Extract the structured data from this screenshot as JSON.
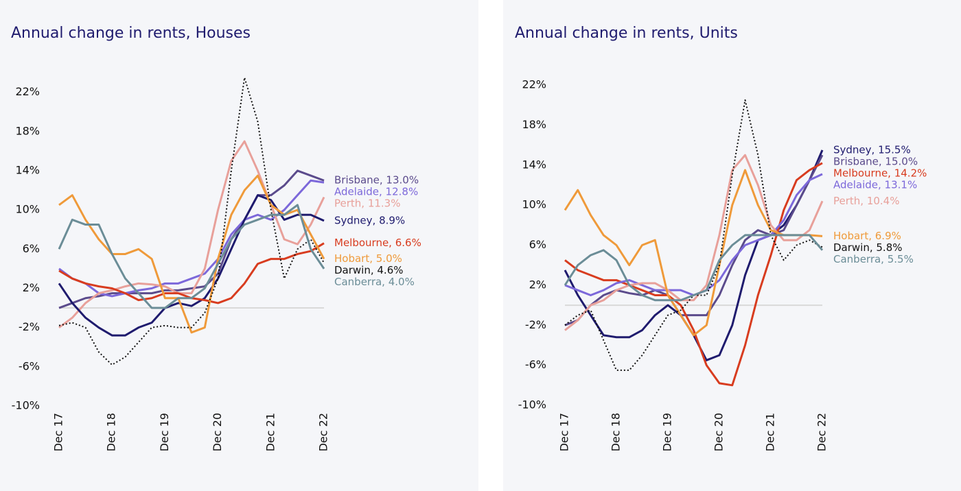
{
  "chart_data": [
    {
      "type": "line",
      "title": "Annual change in rents, Houses",
      "categories": [
        "Dec 17",
        null,
        null,
        null,
        "Dec 18",
        null,
        null,
        null,
        "Dec 19",
        null,
        null,
        null,
        "Dec 20",
        null,
        null,
        null,
        "Dec 21",
        null,
        null,
        null,
        "Dec 22"
      ],
      "ylim": [
        -10,
        24
      ],
      "yticks": [
        {
          "value": 22,
          "label": "22%"
        },
        {
          "value": 18,
          "label": "18%"
        },
        {
          "value": 14,
          "label": "14%"
        },
        {
          "value": 10,
          "label": "10%"
        },
        {
          "value": 6,
          "label": "6%"
        },
        {
          "value": 2,
          "label": "2%"
        },
        {
          "value": -2,
          "label": "-2%"
        },
        {
          "value": -6,
          "label": "-6%"
        },
        {
          "value": -10,
          "label": "-10%"
        }
      ],
      "series": [
        {
          "name": "Brisbane",
          "label": "Brisbane, 13.0%",
          "color": "#5b4b8c",
          "values": [
            0,
            0.5,
            1.0,
            1.2,
            1.5,
            1.5,
            1.5,
            1.5,
            1.8,
            1.8,
            2.0,
            2.2,
            3.5,
            7.0,
            9.0,
            11.5,
            11.5,
            12.5,
            14.0,
            13.5,
            13.0
          ]
        },
        {
          "name": "Adelaide",
          "label": "Adelaide, 12.8%",
          "color": "#7c68da",
          "values": [
            4.0,
            3.0,
            2.5,
            1.5,
            1.2,
            1.5,
            1.8,
            2.0,
            2.5,
            2.5,
            3.0,
            3.5,
            5.0,
            7.5,
            9.0,
            9.5,
            9.0,
            10.0,
            11.5,
            13.0,
            12.8
          ]
        },
        {
          "name": "Perth",
          "label": "Perth, 11.3%",
          "color": "#e8a09a",
          "values": [
            -2.0,
            -1.0,
            0.5,
            1.5,
            1.8,
            2.2,
            2.5,
            2.4,
            2.2,
            1.5,
            1.5,
            4.0,
            10.0,
            15.0,
            17.0,
            14.0,
            10.5,
            7.0,
            6.5,
            8.5,
            11.3
          ]
        },
        {
          "name": "Sydney",
          "label": "Sydney, 8.9%",
          "color": "#1f1b6e",
          "values": [
            2.5,
            0.5,
            -1.0,
            -2.0,
            -2.8,
            -2.8,
            -2.0,
            -1.5,
            0,
            0.5,
            0.2,
            1.0,
            3.0,
            6.0,
            9.0,
            11.5,
            11.0,
            9.0,
            9.5,
            9.5,
            8.9
          ]
        },
        {
          "name": "Melbourne",
          "label": "Melbourne, 6.6%",
          "color": "#d83c1f",
          "values": [
            3.8,
            3.0,
            2.5,
            2.2,
            2.0,
            1.5,
            0.8,
            1.0,
            1.5,
            1.5,
            1.0,
            0.8,
            0.5,
            1.0,
            2.5,
            4.5,
            5.0,
            5.0,
            5.5,
            5.8,
            6.6
          ]
        },
        {
          "name": "Hobart",
          "label": "Hobart, 5.0%",
          "color": "#ef9a3a",
          "values": [
            10.5,
            11.5,
            9.0,
            7.0,
            5.5,
            5.5,
            6.0,
            5.0,
            1.0,
            1.0,
            -2.5,
            -2.0,
            5.0,
            9.5,
            12.0,
            13.5,
            10.5,
            9.5,
            10.0,
            7.5,
            5.0
          ]
        },
        {
          "name": "Darwin",
          "label": "Darwin, 4.6%",
          "color": "#111111",
          "dash": true,
          "values": [
            -1.8,
            -1.5,
            -2.0,
            -4.5,
            -5.8,
            -5.0,
            -3.5,
            -2.0,
            -1.8,
            -2.0,
            -2.0,
            -0.5,
            3.0,
            14.0,
            23.5,
            19.0,
            10.0,
            3.0,
            6.0,
            7.0,
            4.6
          ]
        },
        {
          "name": "Canberra",
          "label": "Canberra, 4.0%",
          "color": "#6b8d97",
          "values": [
            6.0,
            9.0,
            8.5,
            8.5,
            5.5,
            3.0,
            1.5,
            0,
            0,
            1.0,
            1.0,
            2.0,
            4.5,
            7.0,
            8.5,
            9.0,
            9.5,
            9.5,
            10.5,
            6.0,
            4.0
          ]
        }
      ]
    },
    {
      "type": "line",
      "title": "Annual change in rents, Units",
      "categories": [
        "Dec 17",
        null,
        null,
        null,
        "Dec 18",
        null,
        null,
        null,
        "Dec 19",
        null,
        null,
        null,
        "Dec 20",
        null,
        null,
        null,
        "Dec 21",
        null,
        null,
        null,
        "Dec 22"
      ],
      "ylim": [
        -10,
        22
      ],
      "yticks": [
        {
          "value": 22,
          "label": "22%"
        },
        {
          "value": 18,
          "label": "18%"
        },
        {
          "value": 14,
          "label": "14%"
        },
        {
          "value": 10,
          "label": "10%"
        },
        {
          "value": 6,
          "label": "6%"
        },
        {
          "value": 2,
          "label": "2%"
        },
        {
          "value": -2,
          "label": "-2%"
        },
        {
          "value": -6,
          "label": "-6%"
        },
        {
          "value": -10,
          "label": "-10%"
        }
      ],
      "series": [
        {
          "name": "Sydney",
          "label": "Sydney, 15.5%",
          "color": "#1f1b6e",
          "values": [
            3.5,
            1.0,
            -1.0,
            -3.0,
            -3.2,
            -3.2,
            -2.5,
            -1.0,
            0,
            -1.0,
            -3.0,
            -5.5,
            -5.0,
            -2.0,
            3.0,
            6.5,
            7.0,
            8.0,
            10.0,
            12.5,
            15.5
          ]
        },
        {
          "name": "Brisbane",
          "label": "Brisbane, 15.0%",
          "color": "#5b4b8c",
          "values": [
            -2.0,
            -1.5,
            0,
            1.0,
            1.5,
            1.2,
            1.0,
            1.5,
            1.0,
            -1.0,
            -1.0,
            -1.0,
            1.0,
            4.0,
            6.5,
            7.5,
            7.0,
            7.5,
            10.0,
            12.5,
            15.0
          ]
        },
        {
          "name": "Melbourne",
          "label": "Melbourne, 14.2%",
          "color": "#d83c1f",
          "values": [
            4.5,
            3.5,
            3.0,
            2.5,
            2.5,
            2.0,
            1.5,
            1.0,
            1.0,
            0,
            -2.5,
            -6.0,
            -7.8,
            -8.0,
            -4.0,
            1.0,
            5.0,
            9.5,
            12.5,
            13.5,
            14.2
          ]
        },
        {
          "name": "Adelaide",
          "label": "Adelaide, 13.1%",
          "color": "#7c68da",
          "values": [
            2.0,
            1.5,
            1.0,
            1.5,
            2.2,
            2.5,
            2.0,
            1.5,
            1.5,
            1.5,
            1.0,
            1.5,
            2.5,
            4.5,
            6.0,
            6.5,
            7.0,
            8.5,
            11.0,
            12.5,
            13.1
          ]
        },
        {
          "name": "Perth",
          "label": "Perth, 10.4%",
          "color": "#e8a09a",
          "values": [
            -2.5,
            -1.5,
            0,
            0.5,
            1.5,
            2.0,
            2.2,
            2.2,
            1.5,
            0.5,
            0.5,
            2.0,
            7.0,
            13.5,
            15.0,
            12.0,
            8.0,
            6.5,
            6.5,
            7.5,
            10.4
          ]
        },
        {
          "name": "Hobart",
          "label": "Hobart, 6.9%",
          "color": "#ef9a3a",
          "values": [
            9.5,
            11.5,
            9.0,
            7.0,
            6.0,
            4.0,
            6.0,
            6.5,
            1.0,
            -1.0,
            -3.0,
            -2.0,
            4.0,
            10.0,
            13.5,
            10.0,
            7.5,
            7.0,
            7.0,
            7.0,
            6.9
          ]
        },
        {
          "name": "Darwin",
          "label": "Darwin, 5.8%",
          "color": "#111111",
          "dash": true,
          "values": [
            -2.0,
            -1.0,
            -0.5,
            -3.5,
            -6.5,
            -6.5,
            -5.0,
            -3.0,
            -1.0,
            -0.5,
            1.0,
            1.0,
            4.0,
            13.0,
            20.5,
            15.0,
            7.0,
            4.5,
            6.0,
            6.5,
            5.8
          ]
        },
        {
          "name": "Canberra",
          "label": "Canberra, 5.5%",
          "color": "#6b8d97",
          "values": [
            2.0,
            4.0,
            5.0,
            5.5,
            4.5,
            2.0,
            1.0,
            0.5,
            0.5,
            0.5,
            1.0,
            1.5,
            4.5,
            6.0,
            7.0,
            7.0,
            7.0,
            7.0,
            7.0,
            7.0,
            5.5
          ]
        }
      ]
    }
  ]
}
